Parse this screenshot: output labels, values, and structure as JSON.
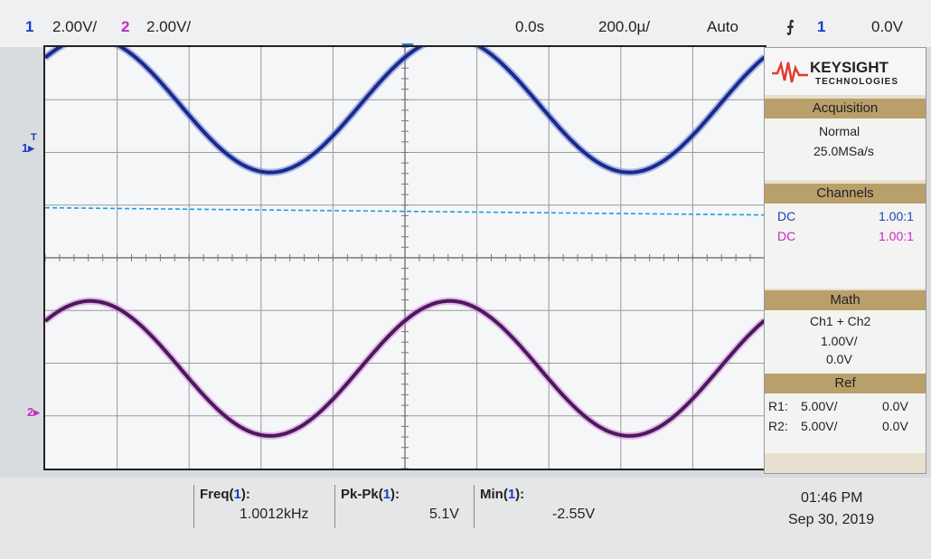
{
  "header": {
    "ch1_num": "1",
    "ch1_scale": "2.00V/",
    "ch2_num": "2",
    "ch2_scale": "2.00V/",
    "time_offset": "0.0s",
    "time_scale": "200.0µ/",
    "trigger_mode": "Auto",
    "trigger_source": "1",
    "trigger_level": "0.0V"
  },
  "screen": {
    "ch1_marker": "1",
    "ch2_marker": "2",
    "trigger_marker": "T"
  },
  "panel": {
    "brand": "KEYSIGHT",
    "brand_sub": "TECHNOLOGIES",
    "acquisition": {
      "title": "Acquisition",
      "mode": "Normal",
      "rate": "25.0MSa/s"
    },
    "channels": {
      "title": "Channels",
      "rows": [
        {
          "coupling": "DC",
          "probe": "1.00:1"
        },
        {
          "coupling": "DC",
          "probe": "1.00:1"
        }
      ]
    },
    "math": {
      "title": "Math",
      "function": "Ch1 + Ch2",
      "scale": "1.00V/",
      "offset": "0.0V"
    },
    "ref": {
      "title": "Ref",
      "rows": [
        {
          "name": "R1:",
          "scale": "5.00V/",
          "offset": "0.0V"
        },
        {
          "name": "R2:",
          "scale": "5.00V/",
          "offset": "0.0V"
        }
      ]
    }
  },
  "measurements": [
    {
      "name": "Freq(",
      "ch": "1",
      "close": "):",
      "value": "1.0012kHz"
    },
    {
      "name": "Pk-Pk(",
      "ch": "1",
      "close": "):",
      "value": "5.1V"
    },
    {
      "name": "Min(",
      "ch": "1",
      "close": "):",
      "value": "-2.55V"
    }
  ],
  "datetime": {
    "time": "01:46 PM",
    "date": "Sep 30, 2019"
  },
  "colors": {
    "ch1": "#1a2a8c",
    "ch2": "#c42bc4",
    "trigger_line": "#1aa0e0",
    "panel_head": "#b99f6a"
  },
  "chart_data": {
    "type": "line",
    "x": [
      -1000,
      -800,
      -600,
      -400,
      -200,
      0,
      200,
      400,
      600,
      800,
      1000
    ],
    "xlabel": "",
    "ylabel": "",
    "xlim": [
      -1000,
      1000
    ],
    "series": [
      {
        "name": "1",
        "offset_div": 2.9,
        "amplitude_div": 1.28,
        "freq_khz": 1.0012,
        "phase_deg": 45
      },
      {
        "name": "2",
        "offset_div": -2.1,
        "amplitude_div": 1.28,
        "freq_khz": 1.0012,
        "phase_deg": 45
      }
    ],
    "trigger_level_div": 0.95,
    "grid": true
  }
}
